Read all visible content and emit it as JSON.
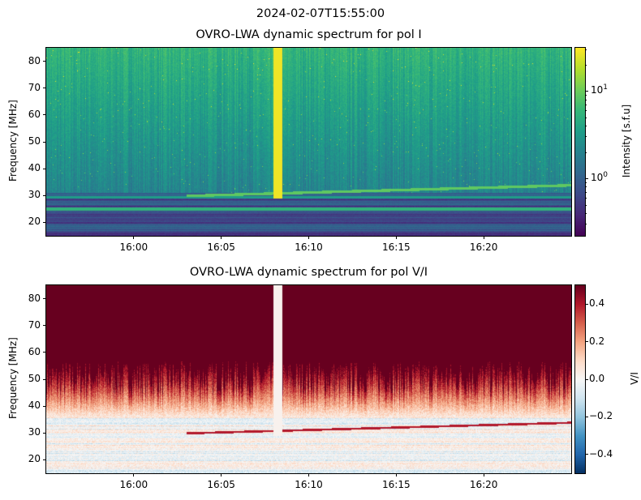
{
  "suptitle": "2024-02-07T15:55:00",
  "chart_data": [
    {
      "type": "heatmap",
      "title": "OVRO-LWA dynamic spectrum for pol I",
      "xlabel": "",
      "ylabel": "Frequency [MHz]",
      "x_range": [
        "15:55",
        "16:25"
      ],
      "x_ticks": [
        "16:00",
        "16:05",
        "16:10",
        "16:15",
        "16:20"
      ],
      "ylim": [
        15,
        85
      ],
      "y_ticks": [
        20,
        30,
        40,
        50,
        60,
        70,
        80
      ],
      "colorbar": {
        "label": "Intensity [s.f.u]",
        "scale": "log",
        "range": [
          0.22,
          31
        ],
        "ticks": [
          "10^0",
          "10^1"
        ],
        "tick_labels": [
          {
            "base": "10",
            "exp": "0"
          },
          {
            "base": "10",
            "exp": "1"
          }
        ],
        "colormap": "viridis"
      },
      "features": {
        "burst_time": "16:08",
        "burst_freq_range": [
          30,
          85
        ],
        "drifting_line_freq": [
          30,
          33
        ]
      }
    },
    {
      "type": "heatmap",
      "title": "OVRO-LWA dynamic spectrum for pol V/I",
      "xlabel": "",
      "ylabel": "Frequency [MHz]",
      "x_range": [
        "15:55",
        "16:25"
      ],
      "x_ticks": [
        "16:00",
        "16:05",
        "16:10",
        "16:15",
        "16:20"
      ],
      "ylim": [
        15,
        85
      ],
      "y_ticks": [
        20,
        30,
        40,
        50,
        60,
        70,
        80
      ],
      "colorbar": {
        "label": "V/I",
        "scale": "linear",
        "range": [
          -0.5,
          0.5
        ],
        "ticks": [
          0.4,
          0.2,
          0.0,
          -0.2,
          -0.4
        ],
        "tick_labels": [
          "0.4",
          "0.2",
          "0.0",
          "−0.2",
          "−0.4"
        ],
        "colormap": "RdBu_r"
      }
    }
  ]
}
